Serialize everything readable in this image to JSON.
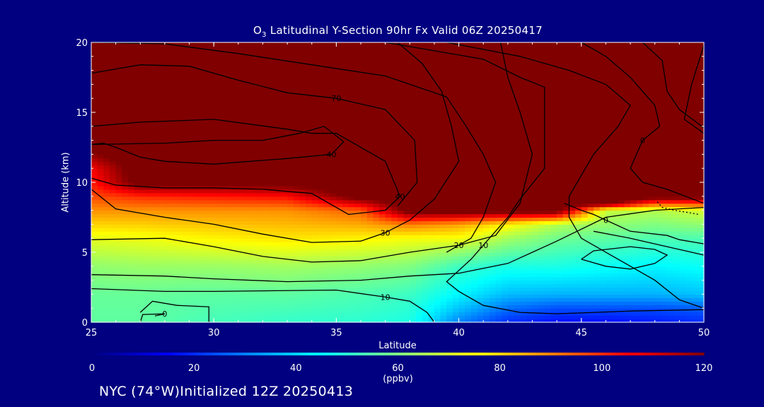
{
  "title": {
    "species": "O",
    "sub": "3",
    "rest": " Latitudinal Y-Section 90hr  Fx Valid 06Z 20250417"
  },
  "footer": "NYC (74°W)Initialized 12Z 20250413",
  "colors": {
    "background": "#000080",
    "axis": "#ffffff",
    "contour": "#000000"
  },
  "chart_data": {
    "type": "heatmap",
    "title": "O3 Latitudinal Y-Section 90hr  Fx Valid 06Z 20250417",
    "xlabel": "Latitude",
    "ylabel": "Altitude (km)",
    "xlim": [
      25,
      50
    ],
    "ylim": [
      0,
      20
    ],
    "x_ticks": [
      "25",
      "30",
      "35",
      "40",
      "45",
      "50"
    ],
    "y_ticks": [
      "0",
      "5",
      "10",
      "15",
      "20"
    ],
    "colorbar": {
      "range": [
        0,
        120
      ],
      "ticks": [
        "0",
        "20",
        "40",
        "60",
        "80",
        "100",
        "120"
      ],
      "unit": "(ppbv)",
      "colormap": [
        "#00007f",
        "#0000ff",
        "#0080ff",
        "#00ffff",
        "#80ff80",
        "#ffff00",
        "#ff8000",
        "#ff0000",
        "#800000"
      ]
    },
    "field_profiles": [
      {
        "lat": 25,
        "alt": [
          0,
          2,
          4,
          6,
          8,
          9,
          10,
          11,
          12,
          13,
          14,
          20
        ],
        "val": [
          56,
          57,
          62,
          72,
          88,
          96,
          102,
          106,
          118,
          128,
          135,
          140
        ]
      },
      {
        "lat": 27,
        "alt": [
          0,
          2,
          4,
          6,
          8,
          9,
          10,
          20
        ],
        "val": [
          56,
          57,
          63,
          73,
          88,
          100,
          125,
          140
        ]
      },
      {
        "lat": 30,
        "alt": [
          0,
          2,
          4,
          6,
          8,
          9,
          10,
          20
        ],
        "val": [
          53,
          56,
          63,
          76,
          88,
          102,
          125,
          140
        ]
      },
      {
        "lat": 33,
        "alt": [
          0,
          2,
          4,
          6,
          8,
          9,
          10,
          20
        ],
        "val": [
          51,
          56,
          64,
          78,
          88,
          104,
          125,
          140
        ]
      },
      {
        "lat": 36,
        "alt": [
          0,
          2,
          4,
          6,
          8,
          9,
          20
        ],
        "val": [
          50,
          54,
          62,
          76,
          94,
          125,
          140
        ]
      },
      {
        "lat": 38,
        "alt": [
          0,
          1,
          2,
          4,
          6,
          7,
          8,
          20
        ],
        "val": [
          48,
          50,
          52,
          60,
          74,
          90,
          125,
          140
        ]
      },
      {
        "lat": 40,
        "alt": [
          0,
          1,
          2,
          4,
          5,
          6,
          7,
          8,
          20
        ],
        "val": [
          30,
          38,
          44,
          52,
          62,
          74,
          86,
          125,
          140
        ]
      },
      {
        "lat": 42,
        "alt": [
          0,
          1,
          2,
          4,
          6,
          7,
          8,
          20
        ],
        "val": [
          20,
          28,
          37,
          48,
          64,
          76,
          125,
          140
        ]
      },
      {
        "lat": 44,
        "alt": [
          0,
          1,
          2,
          4,
          6,
          7,
          8,
          20
        ],
        "val": [
          16,
          24,
          36,
          48,
          58,
          66,
          125,
          140
        ]
      },
      {
        "lat": 46,
        "alt": [
          0,
          1,
          2,
          4,
          6,
          8,
          8.5,
          20
        ],
        "val": [
          16,
          24,
          36,
          46,
          56,
          68,
          125,
          140
        ]
      },
      {
        "lat": 48,
        "alt": [
          0,
          1,
          2,
          4,
          6,
          8,
          9,
          20
        ],
        "val": [
          18,
          24,
          36,
          44,
          54,
          66,
          125,
          140
        ]
      },
      {
        "lat": 50,
        "alt": [
          0,
          1,
          2,
          4,
          6,
          8,
          9,
          20
        ],
        "val": [
          20,
          26,
          38,
          46,
          54,
          70,
          125,
          140
        ]
      }
    ],
    "contours": [
      {
        "label": "0",
        "points": [
          [
            27.0,
            0.0
          ],
          [
            27.1,
            0.55
          ],
          [
            28.0,
            0.6
          ],
          [
            27.6,
            0.45
          ]
        ]
      },
      {
        "label": "10",
        "points": [
          [
            25.0,
            2.4
          ],
          [
            28.0,
            2.2
          ],
          [
            30.0,
            2.2
          ],
          [
            35.0,
            2.3
          ],
          [
            37.0,
            1.8
          ],
          [
            38.0,
            1.5
          ],
          [
            38.7,
            0.7
          ],
          [
            39.0,
            0.0
          ]
        ]
      },
      {
        "label": "20",
        "points": [
          [
            25.0,
            5.9
          ],
          [
            28.0,
            6.0
          ],
          [
            30.0,
            5.4
          ],
          [
            32.0,
            4.7
          ],
          [
            34.0,
            4.3
          ],
          [
            36.0,
            4.4
          ],
          [
            38.0,
            5.0
          ],
          [
            40.0,
            5.5
          ],
          [
            41.5,
            6.2
          ],
          [
            42.5,
            8.5
          ],
          [
            43.0,
            12.0
          ],
          [
            42.5,
            15.0
          ],
          [
            42.0,
            17.5
          ],
          [
            41.7,
            20.0
          ]
        ]
      },
      {
        "label": "30",
        "points": [
          [
            25.0,
            9.5
          ],
          [
            26.0,
            8.1
          ],
          [
            28.0,
            7.5
          ],
          [
            30.0,
            7.0
          ],
          [
            32.0,
            6.3
          ],
          [
            34.0,
            5.7
          ],
          [
            36.0,
            5.8
          ],
          [
            37.0,
            6.4
          ],
          [
            38.0,
            7.3
          ],
          [
            39.0,
            8.8
          ],
          [
            40.0,
            11.5
          ],
          [
            39.7,
            14.0
          ],
          [
            39.3,
            16.5
          ],
          [
            38.5,
            18.5
          ],
          [
            37.5,
            20.0
          ]
        ]
      },
      {
        "label": "40",
        "points": [
          [
            25.0,
            12.7
          ],
          [
            28.0,
            12.8
          ],
          [
            30.0,
            13.0
          ],
          [
            32.0,
            13.0
          ],
          [
            33.5,
            13.5
          ],
          [
            34.5,
            14.0
          ],
          [
            35.3,
            12.9
          ],
          [
            34.8,
            12.0
          ],
          [
            33.0,
            11.7
          ],
          [
            30.0,
            11.3
          ],
          [
            28.0,
            11.5
          ],
          [
            27.0,
            11.8
          ],
          [
            26.0,
            12.5
          ],
          [
            25.5,
            12.8
          ],
          [
            25.0,
            12.7
          ]
        ]
      },
      {
        "label": "40",
        "points": [
          [
            25.0,
            14.0
          ],
          [
            27.0,
            14.3
          ],
          [
            30.0,
            14.5
          ],
          [
            33.0,
            13.8
          ],
          [
            34.0,
            13.5
          ],
          [
            35.0,
            13.5
          ],
          [
            36.0,
            12.5
          ],
          [
            37.0,
            11.5
          ],
          [
            37.6,
            9.0
          ],
          [
            37.0,
            8.0
          ],
          [
            35.5,
            7.7
          ],
          [
            34.0,
            9.2
          ],
          [
            32.0,
            9.5
          ],
          [
            30.0,
            9.6
          ],
          [
            28.0,
            9.6
          ],
          [
            26.0,
            9.8
          ],
          [
            25.0,
            10.3
          ]
        ]
      },
      {
        "label": "70",
        "points": [
          [
            25.0,
            17.8
          ],
          [
            27.0,
            18.4
          ],
          [
            29.0,
            18.3
          ],
          [
            31.0,
            17.3
          ],
          [
            33.0,
            16.4
          ],
          [
            35.0,
            16.0
          ],
          [
            37.0,
            15.2
          ],
          [
            38.2,
            13.0
          ],
          [
            38.3,
            10.0
          ],
          [
            37.5,
            8.3
          ]
        ]
      },
      {
        "label": "",
        "points": [
          [
            25.0,
            20.0
          ],
          [
            28.0,
            19.9
          ],
          [
            31.0,
            19.2
          ],
          [
            34.0,
            18.4
          ],
          [
            37.0,
            17.6
          ],
          [
            39.5,
            16.1
          ],
          [
            40.3,
            14.0
          ],
          [
            41.0,
            12.0
          ],
          [
            41.5,
            10.0
          ],
          [
            41.0,
            7.5
          ],
          [
            40.5,
            6.0
          ],
          [
            39.5,
            5.0
          ]
        ]
      },
      {
        "label": "10",
        "points": [
          [
            37.0,
            20.0
          ],
          [
            39.0,
            19.4
          ],
          [
            41.0,
            18.8
          ],
          [
            42.5,
            17.5
          ],
          [
            43.5,
            16.8
          ],
          [
            43.5,
            13.0
          ],
          [
            43.5,
            11.0
          ],
          [
            42.5,
            8.8
          ],
          [
            42.0,
            7.5
          ],
          [
            41.0,
            5.5
          ],
          [
            40.5,
            4.5
          ],
          [
            39.5,
            2.9
          ],
          [
            40.0,
            2.2
          ],
          [
            41.0,
            1.2
          ],
          [
            42.5,
            0.7
          ],
          [
            44.0,
            0.6
          ],
          [
            47.0,
            0.8
          ],
          [
            50.0,
            0.9
          ]
        ]
      },
      {
        "label": "",
        "points": [
          [
            39.5,
            20.0
          ],
          [
            42.5,
            19.0
          ],
          [
            44.5,
            18.0
          ],
          [
            46.0,
            17.0
          ],
          [
            47.0,
            15.5
          ],
          [
            46.5,
            14.0
          ],
          [
            45.5,
            12.0
          ],
          [
            45.0,
            10.5
          ],
          [
            44.5,
            9.0
          ],
          [
            44.5,
            7.5
          ],
          [
            45.0,
            6.0
          ],
          [
            46.5,
            4.5
          ],
          [
            48.0,
            3.0
          ],
          [
            49.0,
            1.6
          ],
          [
            50.0,
            1.0
          ]
        ]
      },
      {
        "label": "0",
        "points": [
          [
            45.0,
            20.0
          ],
          [
            46.0,
            19.0
          ],
          [
            47.0,
            17.5
          ],
          [
            48.0,
            15.5
          ],
          [
            48.2,
            14.0
          ],
          [
            47.5,
            13.0
          ],
          [
            47.0,
            11.0
          ],
          [
            47.5,
            10.0
          ],
          [
            48.5,
            9.5
          ],
          [
            50.0,
            8.5
          ]
        ]
      },
      {
        "label": "",
        "points": [
          [
            45.5,
            6.5
          ],
          [
            47.0,
            6.0
          ],
          [
            48.5,
            5.4
          ],
          [
            49.5,
            5.0
          ],
          [
            50.0,
            4.8
          ]
        ]
      },
      {
        "label": "",
        "points": [
          [
            47.5,
            20.0
          ],
          [
            48.3,
            18.7
          ],
          [
            48.5,
            16.5
          ],
          [
            49.0,
            15.2
          ],
          [
            50.0,
            13.9
          ]
        ]
      },
      {
        "label": "",
        "points": [
          [
            50.0,
            19.8
          ],
          [
            49.5,
            17.0
          ],
          [
            49.2,
            14.5
          ],
          [
            50.0,
            13.5
          ]
        ]
      },
      {
        "label": "0",
        "points": [
          [
            50.0,
            5.6
          ],
          [
            49.0,
            5.9
          ],
          [
            48.5,
            6.2
          ],
          [
            47.0,
            6.5
          ],
          [
            46.0,
            7.3
          ],
          [
            45.5,
            7.7
          ],
          [
            45.0,
            8.0
          ],
          [
            44.3,
            8.5
          ]
        ]
      },
      {
        "label": "",
        "points": [
          [
            45.0,
            4.5
          ],
          [
            46.0,
            4.0
          ],
          [
            47.0,
            3.8
          ],
          [
            48.0,
            4.2
          ],
          [
            48.5,
            4.8
          ],
          [
            48.0,
            5.2
          ],
          [
            47.0,
            5.4
          ],
          [
            45.5,
            5.1
          ],
          [
            45.0,
            4.5
          ]
        ]
      },
      {
        "label": "",
        "points": [
          [
            29.8,
            0.0
          ],
          [
            29.8,
            1.1
          ],
          [
            28.5,
            1.2
          ],
          [
            27.5,
            1.5
          ],
          [
            27.0,
            0.7
          ]
        ]
      },
      {
        "label": "",
        "points": [
          [
            25.0,
            3.4
          ],
          [
            28.0,
            3.3
          ],
          [
            30.0,
            3.1
          ],
          [
            33.0,
            2.9
          ],
          [
            36.0,
            3.0
          ],
          [
            38.0,
            3.3
          ],
          [
            40.0,
            3.5
          ],
          [
            42.0,
            4.2
          ],
          [
            44.0,
            5.8
          ],
          [
            46.0,
            7.5
          ],
          [
            48.0,
            8.0
          ],
          [
            50.0,
            8.2
          ]
        ]
      }
    ],
    "dotted_segment": [
      [
        48.1,
        8.6
      ],
      [
        48.3,
        8.2
      ],
      [
        48.8,
        8.0
      ],
      [
        49.5,
        7.8
      ],
      [
        49.8,
        7.7
      ]
    ]
  }
}
